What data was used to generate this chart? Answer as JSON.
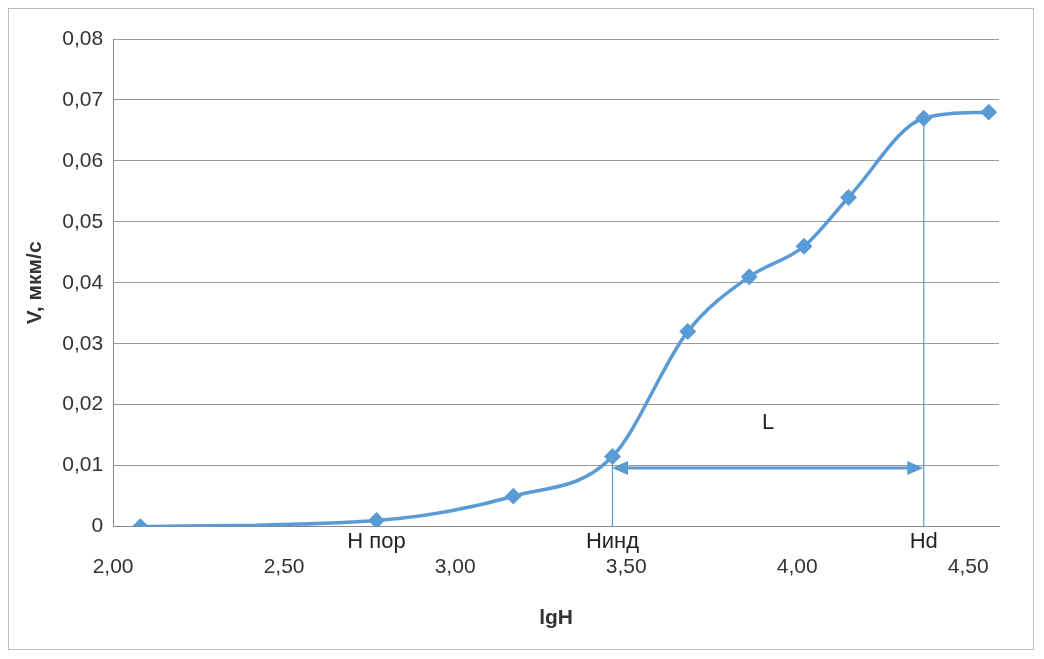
{
  "chart_data": {
    "type": "line",
    "xlabel": "lgH",
    "ylabel": "V, мкм/с",
    "x": [
      2.08,
      2.77,
      3.17,
      3.46,
      3.68,
      3.86,
      4.02,
      4.15,
      4.37,
      4.56
    ],
    "series": [
      {
        "color": "#5b9bd5",
        "values": [
          0,
          0.001,
          0.005,
          0.0115,
          0.032,
          0.041,
          0.046,
          0.054,
          0.067,
          0.068
        ]
      }
    ],
    "xlim": [
      2.0,
      4.59
    ],
    "xticks": [
      {
        "value": 2,
        "label": "2,00"
      },
      {
        "value": 2.5,
        "label": "2,50"
      },
      {
        "value": 3,
        "label": "3,00"
      },
      {
        "value": 3.5,
        "label": "3,50"
      },
      {
        "value": 4,
        "label": "4,00"
      },
      {
        "value": 4.5,
        "label": "4,50"
      }
    ],
    "ylim": [
      0,
      0.08
    ],
    "yticks": [
      0,
      {
        "value": 0.01,
        "label": "0,01"
      },
      {
        "value": 0.02,
        "label": "0,02"
      },
      {
        "value": 0.03,
        "label": "0,03"
      },
      {
        "value": 0.04,
        "label": "0,04"
      },
      {
        "value": 0.05,
        "label": "0,05"
      },
      {
        "value": 0.06,
        "label": "0,06"
      },
      {
        "value": 0.07,
        "label": "0,07"
      },
      {
        "value": 0.08,
        "label": "0,08"
      }
    ],
    "ref_lines": [
      {
        "axis": "x",
        "value": 3.46,
        "label": "Нинд",
        "color": "#5b9bd5"
      },
      {
        "axis": "x",
        "value": 4.37,
        "label": "Hd",
        "color": "#5b9bd5"
      }
    ],
    "annotations": [
      {
        "text": "Н пор",
        "x": 2.77,
        "y": 0
      },
      "L"
    ],
    "grid": "y",
    "marker": "diamond",
    "line_style": "solid",
    "legend": false
  }
}
